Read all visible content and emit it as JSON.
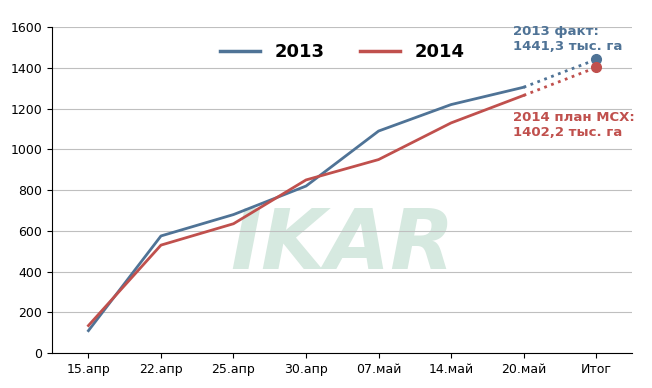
{
  "chart_data": {
    "type": "line",
    "categories": [
      "15.апр",
      "22.апр",
      "25.апр",
      "30.апр",
      "07.май",
      "14.май",
      "20.май",
      "Итог"
    ],
    "series": [
      {
        "name": "2013",
        "color": "#4f7396",
        "values": [
          110,
          575,
          680,
          820,
          1090,
          1220,
          1305,
          1441.3
        ]
      },
      {
        "name": "2014",
        "color": "#c0504d",
        "values": [
          135,
          530,
          635,
          850,
          950,
          1130,
          1265,
          1402.2
        ]
      }
    ],
    "annotations": [
      {
        "text": "2013 факт:\n1441,3 тыс. га",
        "color": "#4f7396"
      },
      {
        "text": "2014 план МСХ:\n1402,2 тыс. га",
        "color": "#c0504d"
      }
    ],
    "watermark": "IKAR",
    "ylim": [
      0,
      1600
    ],
    "yticks": [
      0,
      200,
      400,
      600,
      800,
      1000,
      1200,
      1400,
      1600
    ],
    "grid": true,
    "legend": "upper center"
  }
}
